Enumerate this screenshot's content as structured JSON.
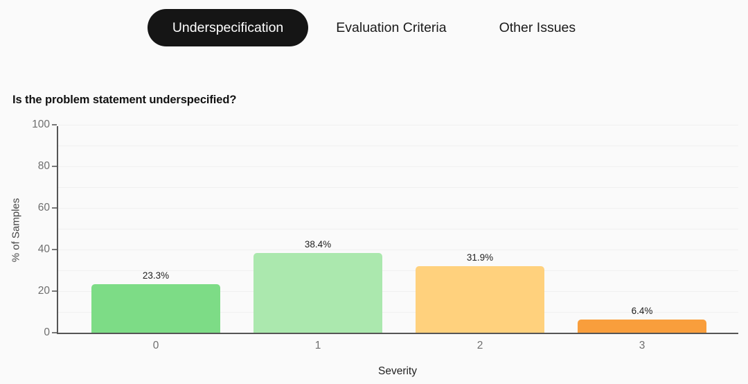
{
  "tabs": [
    {
      "label": "Underspecification",
      "active": true
    },
    {
      "label": "Evaluation Criteria",
      "active": false
    },
    {
      "label": "Other Issues",
      "active": false
    }
  ],
  "colors": {
    "background": "#fafafa",
    "active_tab_bg": "#151515",
    "active_tab_text": "#ffffff",
    "tab_text": "#1a1a1a",
    "axis": "#555555",
    "grid": "#f0f0f0",
    "tick_label": "#6e6e6e",
    "title_text": "#111111"
  },
  "chart_data": {
    "type": "bar",
    "title": "Is the problem statement underspecified?",
    "categories": [
      "0",
      "1",
      "2",
      "3"
    ],
    "values": [
      23.3,
      38.4,
      31.9,
      6.4
    ],
    "value_labels": [
      "23.3%",
      "38.4%",
      "31.9%",
      "6.4%"
    ],
    "bar_colors": [
      "#7ddc86",
      "#abe8ae",
      "#ffd17d",
      "#f99e3c"
    ],
    "xlabel": "Severity",
    "ylabel": "% of Samples",
    "ylim": [
      0,
      100
    ],
    "yticks": [
      0,
      20,
      40,
      60,
      80,
      100
    ],
    "grid": {
      "show": true,
      "step": 10
    },
    "legend": "none"
  }
}
